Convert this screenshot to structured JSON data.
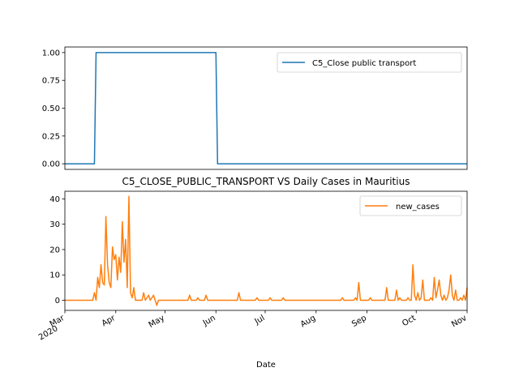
{
  "chart_data": [
    {
      "type": "line",
      "title": "",
      "xlabel": "",
      "ylabel": "",
      "ylim": [
        -0.05,
        1.05
      ],
      "yticks": [
        "0.00",
        "0.25",
        "0.50",
        "0.75",
        "1.00"
      ],
      "x_range": [
        "2020-03-01",
        "2020-11-01"
      ],
      "legend": "top-right",
      "grid": false,
      "series": [
        {
          "name": "C5_Close public transport",
          "color": "#1f77b4",
          "points": [
            [
              "2020-03-01",
              0
            ],
            [
              "2020-03-19",
              0
            ],
            [
              "2020-03-20",
              1
            ],
            [
              "2020-06-01",
              1
            ],
            [
              "2020-06-02",
              0
            ],
            [
              "2020-11-01",
              0
            ]
          ]
        }
      ]
    },
    {
      "type": "line",
      "title": "C5_CLOSE_PUBLIC_TRANSPORT VS Daily Cases in Mauritius",
      "xlabel": "Date",
      "ylabel": "",
      "ylim": [
        -4,
        43
      ],
      "yticks": [
        "0",
        "10",
        "20",
        "30",
        "40"
      ],
      "xticks": [
        {
          "date": "2020-03-01",
          "label": "Mar",
          "sublabel": "2020"
        },
        {
          "date": "2020-04-01",
          "label": "Apr"
        },
        {
          "date": "2020-05-01",
          "label": "May"
        },
        {
          "date": "2020-06-01",
          "label": "Jun"
        },
        {
          "date": "2020-07-01",
          "label": "Jul"
        },
        {
          "date": "2020-08-01",
          "label": "Aug"
        },
        {
          "date": "2020-09-01",
          "label": "Sep"
        },
        {
          "date": "2020-10-01",
          "label": "Oct"
        },
        {
          "date": "2020-11-01",
          "label": "Nov"
        }
      ],
      "legend": "top-right",
      "grid": false,
      "series": [
        {
          "name": "new_cases",
          "color": "#ff7f0e",
          "points": [
            [
              "2020-03-01",
              0
            ],
            [
              "2020-03-18",
              0
            ],
            [
              "2020-03-19",
              3
            ],
            [
              "2020-03-20",
              0
            ],
            [
              "2020-03-21",
              9
            ],
            [
              "2020-03-22",
              5
            ],
            [
              "2020-03-23",
              14
            ],
            [
              "2020-03-24",
              7
            ],
            [
              "2020-03-25",
              6
            ],
            [
              "2020-03-26",
              33
            ],
            [
              "2020-03-27",
              14
            ],
            [
              "2020-03-28",
              7
            ],
            [
              "2020-03-29",
              5
            ],
            [
              "2020-03-30",
              21
            ],
            [
              "2020-03-31",
              16
            ],
            [
              "2020-04-01",
              18
            ],
            [
              "2020-04-02",
              8
            ],
            [
              "2020-04-03",
              17
            ],
            [
              "2020-04-04",
              11
            ],
            [
              "2020-04-05",
              31
            ],
            [
              "2020-04-06",
              15
            ],
            [
              "2020-04-07",
              24
            ],
            [
              "2020-04-08",
              5
            ],
            [
              "2020-04-09",
              41
            ],
            [
              "2020-04-10",
              3
            ],
            [
              "2020-04-11",
              1
            ],
            [
              "2020-04-12",
              5
            ],
            [
              "2020-04-13",
              0
            ],
            [
              "2020-04-17",
              0
            ],
            [
              "2020-04-18",
              3
            ],
            [
              "2020-04-19",
              0
            ],
            [
              "2020-04-21",
              2
            ],
            [
              "2020-04-22",
              0
            ],
            [
              "2020-04-24",
              2
            ],
            [
              "2020-04-25",
              0
            ],
            [
              "2020-04-26",
              -2
            ],
            [
              "2020-04-27",
              0
            ],
            [
              "2020-05-15",
              0
            ],
            [
              "2020-05-16",
              2
            ],
            [
              "2020-05-17",
              0
            ],
            [
              "2020-05-20",
              0
            ],
            [
              "2020-05-21",
              1
            ],
            [
              "2020-05-22",
              0
            ],
            [
              "2020-05-25",
              0
            ],
            [
              "2020-05-26",
              2
            ],
            [
              "2020-05-27",
              0
            ],
            [
              "2020-06-14",
              0
            ],
            [
              "2020-06-15",
              3
            ],
            [
              "2020-06-16",
              0
            ],
            [
              "2020-06-25",
              0
            ],
            [
              "2020-06-26",
              1
            ],
            [
              "2020-06-27",
              0
            ],
            [
              "2020-07-03",
              0
            ],
            [
              "2020-07-04",
              1
            ],
            [
              "2020-07-05",
              0
            ],
            [
              "2020-07-11",
              0
            ],
            [
              "2020-07-12",
              1
            ],
            [
              "2020-07-13",
              0
            ],
            [
              "2020-08-16",
              0
            ],
            [
              "2020-08-17",
              1
            ],
            [
              "2020-08-18",
              0
            ],
            [
              "2020-08-24",
              0
            ],
            [
              "2020-08-25",
              1
            ],
            [
              "2020-08-26",
              0
            ],
            [
              "2020-08-27",
              7
            ],
            [
              "2020-08-28",
              0
            ],
            [
              "2020-09-02",
              0
            ],
            [
              "2020-09-03",
              1
            ],
            [
              "2020-09-04",
              0
            ],
            [
              "2020-09-12",
              0
            ],
            [
              "2020-09-13",
              5
            ],
            [
              "2020-09-14",
              0
            ],
            [
              "2020-09-18",
              0
            ],
            [
              "2020-09-19",
              4
            ],
            [
              "2020-09-20",
              0
            ],
            [
              "2020-09-21",
              1
            ],
            [
              "2020-09-22",
              0
            ],
            [
              "2020-09-25",
              0
            ],
            [
              "2020-09-26",
              1
            ],
            [
              "2020-09-27",
              0
            ],
            [
              "2020-09-28",
              0
            ],
            [
              "2020-09-29",
              14
            ],
            [
              "2020-09-30",
              2
            ],
            [
              "2020-10-01",
              0
            ],
            [
              "2020-10-02",
              3
            ],
            [
              "2020-10-03",
              0
            ],
            [
              "2020-10-04",
              1
            ],
            [
              "2020-10-05",
              8
            ],
            [
              "2020-10-06",
              0
            ],
            [
              "2020-10-09",
              0
            ],
            [
              "2020-10-10",
              1
            ],
            [
              "2020-10-11",
              0
            ],
            [
              "2020-10-12",
              9
            ],
            [
              "2020-10-13",
              1
            ],
            [
              "2020-10-14",
              4
            ],
            [
              "2020-10-15",
              8
            ],
            [
              "2020-10-16",
              2
            ],
            [
              "2020-10-17",
              0
            ],
            [
              "2020-10-18",
              2
            ],
            [
              "2020-10-19",
              0
            ],
            [
              "2020-10-20",
              1
            ],
            [
              "2020-10-21",
              4
            ],
            [
              "2020-10-22",
              10
            ],
            [
              "2020-10-23",
              2
            ],
            [
              "2020-10-24",
              0
            ],
            [
              "2020-10-25",
              4
            ],
            [
              "2020-10-26",
              0
            ],
            [
              "2020-10-27",
              0
            ],
            [
              "2020-10-28",
              1
            ],
            [
              "2020-10-29",
              0
            ],
            [
              "2020-10-30",
              2
            ],
            [
              "2020-10-31",
              0
            ],
            [
              "2020-11-01",
              5
            ]
          ]
        }
      ]
    }
  ]
}
